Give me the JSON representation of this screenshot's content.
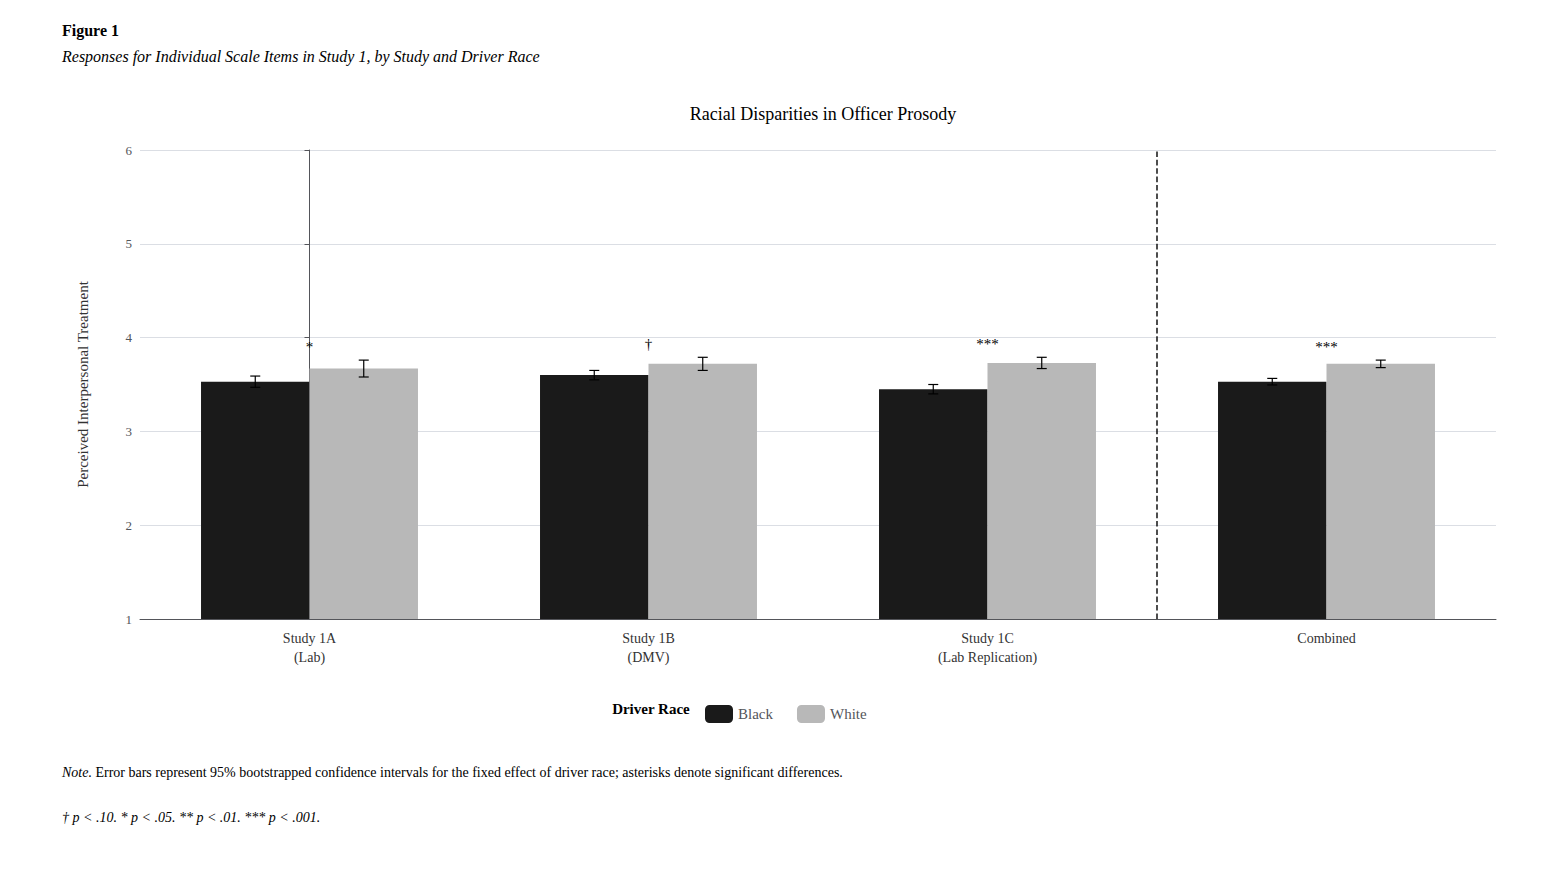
{
  "chart_data": {
    "type": "bar",
    "title": "Racial Disparities in Officer Prosody",
    "figure_label": "Figure 1",
    "figure_caption": "Responses for Individual Scale Items in Study 1, by Study and Driver Race",
    "ylabel": "Perceived Interpersonal Treatment",
    "categories": [
      "Study 1A\n(Lab)",
      "Study 1B\n(DMV)",
      "Study 1C\n(Lab Replication)",
      "Combined"
    ],
    "series": [
      {
        "name": "Black",
        "color": "#1a1a1a",
        "values": [
          3.53,
          3.6,
          3.45,
          3.53
        ],
        "errors": [
          0.06,
          0.05,
          0.05,
          0.035
        ]
      },
      {
        "name": "White",
        "color": "#b8b8b8",
        "values": [
          3.67,
          3.72,
          3.73,
          3.72
        ],
        "errors": [
          0.09,
          0.07,
          0.06,
          0.04
        ]
      }
    ],
    "significance": [
      "*",
      "†",
      "***",
      "***"
    ],
    "ylim": [
      1,
      6
    ],
    "yticks": [
      1,
      2,
      3,
      4,
      5,
      6
    ],
    "grid": true,
    "legend": "bottom",
    "legend_title": "Driver Race",
    "note_word": "Note.",
    "note_text": "Error bars represent 95% bootstrapped confidence intervals for the fixed effect of driver race; asterisks denote significant differences.",
    "footnote": "† p < .10. * p < .05. ** p < .01. *** p < .001."
  }
}
